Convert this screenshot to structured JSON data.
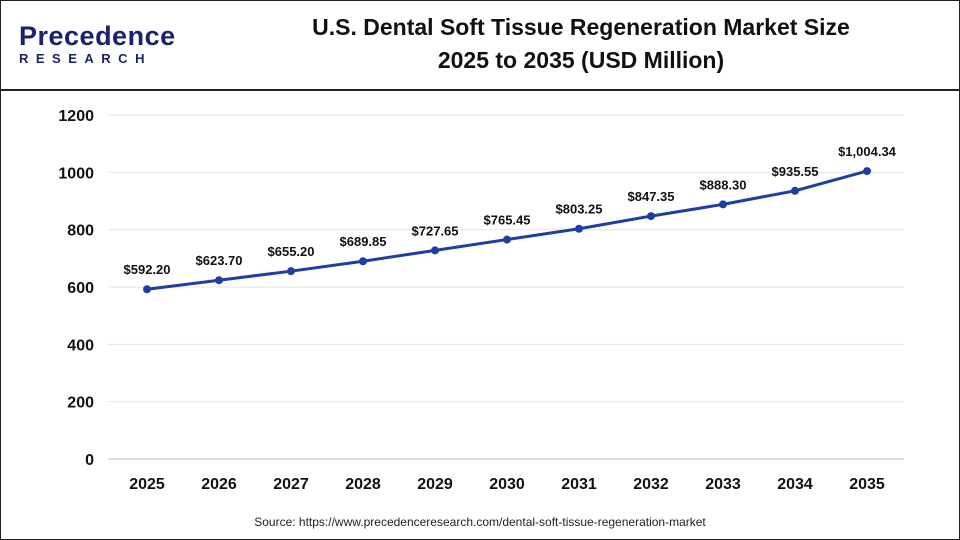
{
  "logo": {
    "line1": "Precedence",
    "line2": "RESEARCH"
  },
  "title": {
    "line1": "U.S. Dental Soft Tissue Regeneration Market Size",
    "line2": "2025 to 2035 (USD Million)"
  },
  "source": "Source: https://www.precedenceresearch.com/dental-soft-tissue-regeneration-market",
  "chart_data": {
    "type": "line",
    "categories": [
      "2025",
      "2026",
      "2027",
      "2028",
      "2029",
      "2030",
      "2031",
      "2032",
      "2033",
      "2034",
      "2035"
    ],
    "values": [
      592.2,
      623.7,
      655.2,
      689.85,
      727.65,
      765.45,
      803.25,
      847.35,
      888.3,
      935.55,
      1004.34
    ],
    "data_labels": [
      "$592.20",
      "$623.70",
      "$655.20",
      "$689.85",
      "$727.65",
      "$765.45",
      "$803.25",
      "$847.35",
      "$888.30",
      "$935.55",
      "$1,004.34"
    ],
    "yticks": [
      0,
      200,
      400,
      600,
      800,
      1000,
      1200
    ],
    "ylim": [
      0,
      1200
    ],
    "grid": true,
    "line_color": "#1f3fa0"
  }
}
